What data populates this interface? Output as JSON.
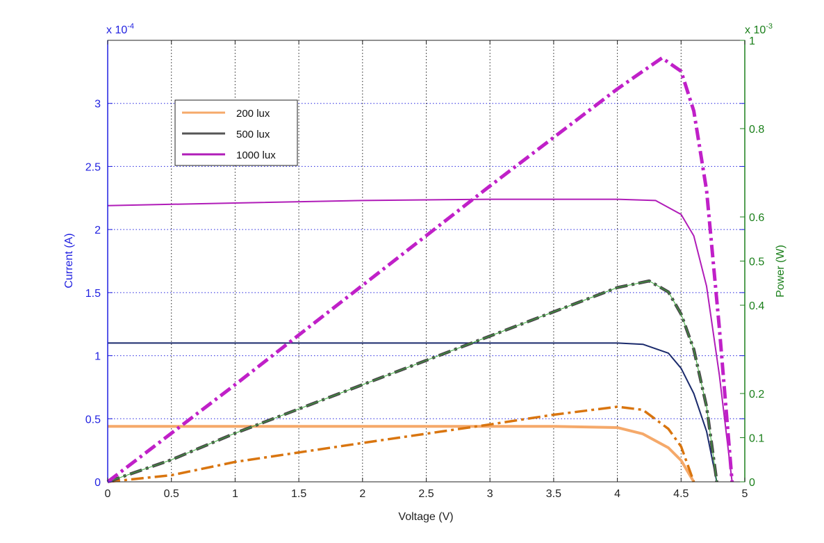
{
  "chart_data": {
    "type": "line",
    "title": "",
    "xlabel": "Voltage (V)",
    "ylabel_left": "Current (A)",
    "ylabel_right": "Power (W)",
    "left_exponent": "x 10",
    "left_exponent_power": "-4",
    "right_exponent": "x 10",
    "right_exponent_power": "-3",
    "xlim": [
      0,
      5
    ],
    "ylim_left": [
      0,
      3.5
    ],
    "ylim_right": [
      0,
      1.0
    ],
    "x_ticks": [
      "0",
      "0.5",
      "1",
      "1.5",
      "2",
      "2.5",
      "3",
      "3.5",
      "4",
      "4.5",
      "5"
    ],
    "y_left_ticks": [
      "0",
      "0.5",
      "1",
      "1.5",
      "2",
      "2.5",
      "3"
    ],
    "y_right_ticks": [
      "0",
      "0.1",
      "0.2",
      "0.4",
      "0.5",
      "0.6",
      "0.8",
      "1"
    ],
    "grid": true,
    "legend_position": "top-left",
    "legend": [
      {
        "name": "200 lux",
        "color": "#f5a96a"
      },
      {
        "name": "500 lux",
        "color": "#555555"
      },
      {
        "name": "1000 lux",
        "color": "#b01cb8"
      }
    ],
    "current_series": [
      {
        "name": "200 lux",
        "color": "#f5a96a",
        "x": [
          0,
          1,
          2,
          3,
          3.5,
          4.0,
          4.2,
          4.4,
          4.5,
          4.6
        ],
        "y": [
          0.44,
          0.44,
          0.44,
          0.44,
          0.44,
          0.43,
          0.38,
          0.27,
          0.17,
          0
        ]
      },
      {
        "name": "500 lux",
        "color": "#1a2a6c",
        "x": [
          0,
          1,
          2,
          3,
          4.0,
          4.2,
          4.4,
          4.5,
          4.6,
          4.7,
          4.78
        ],
        "y": [
          1.1,
          1.1,
          1.1,
          1.1,
          1.1,
          1.09,
          1.02,
          0.9,
          0.7,
          0.4,
          0
        ]
      },
      {
        "name": "1000 lux",
        "color": "#b01cb8",
        "x": [
          0,
          1,
          2,
          3,
          4.0,
          4.3,
          4.5,
          4.6,
          4.7,
          4.8,
          4.9
        ],
        "y": [
          2.19,
          2.21,
          2.23,
          2.24,
          2.24,
          2.23,
          2.12,
          1.95,
          1.55,
          0.85,
          0
        ]
      }
    ],
    "power_series": [
      {
        "name": "200 lux",
        "color": "#d9750f",
        "x": [
          0,
          0.5,
          1,
          2,
          3,
          3.5,
          4.0,
          4.2,
          4.4,
          4.5,
          4.6
        ],
        "y": [
          0,
          0.015,
          0.045,
          0.088,
          0.13,
          0.152,
          0.17,
          0.163,
          0.12,
          0.08,
          0
        ]
      },
      {
        "name": "500 lux",
        "color": "#4a4a4a",
        "x": [
          0,
          0.5,
          1,
          2,
          3,
          4.0,
          4.25,
          4.4,
          4.5,
          4.6,
          4.7,
          4.78
        ],
        "y": [
          0,
          0.05,
          0.11,
          0.22,
          0.33,
          0.44,
          0.455,
          0.43,
          0.38,
          0.3,
          0.17,
          0
        ]
      },
      {
        "name": "1000 lux",
        "color": "#c020c8",
        "x": [
          0,
          1,
          2,
          3,
          4.0,
          4.35,
          4.5,
          4.6,
          4.7,
          4.8,
          4.9
        ],
        "y": [
          0,
          0.22,
          0.445,
          0.67,
          0.89,
          0.96,
          0.93,
          0.84,
          0.66,
          0.35,
          0
        ]
      }
    ]
  }
}
